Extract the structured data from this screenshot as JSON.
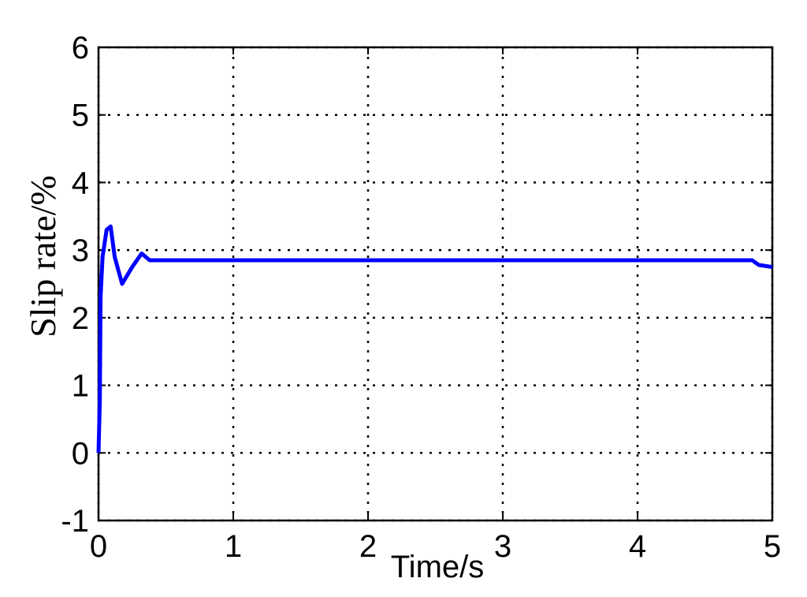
{
  "chart_data": {
    "type": "line",
    "ylabel": "Slip rate/%",
    "xlabel": "Time/s",
    "x": [
      0,
      0.01,
      0.015,
      0.03,
      0.06,
      0.09,
      0.12,
      0.175,
      0.25,
      0.32,
      0.38,
      4.85,
      4.9,
      5
    ],
    "series": [
      {
        "color": "#0000ff",
        "values": [
          0,
          0.8,
          2.3,
          2.9,
          3.3,
          3.35,
          2.9,
          2.5,
          2.75,
          2.95,
          2.85,
          2.85,
          2.78,
          2.75
        ]
      }
    ],
    "xlim": [
      0,
      5
    ],
    "xticks": [
      0,
      1,
      2,
      3,
      4,
      5
    ],
    "ylim": [
      -1,
      6
    ],
    "yticks": [
      -1,
      0,
      1,
      2,
      3,
      4,
      5,
      6
    ],
    "grid": true
  }
}
